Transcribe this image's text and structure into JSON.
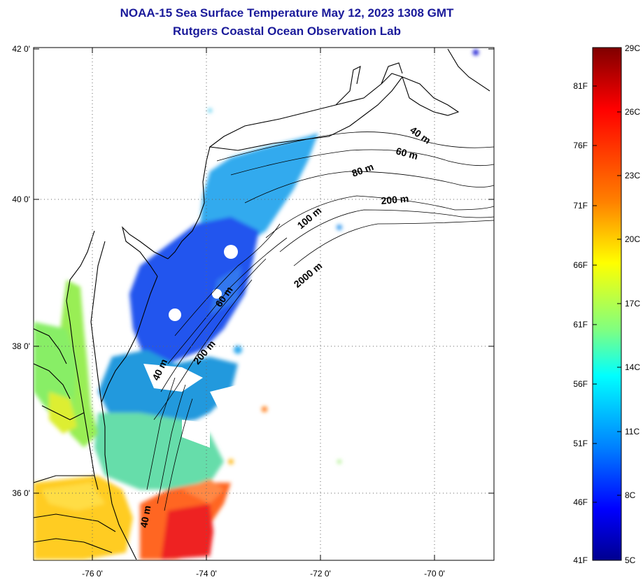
{
  "title": {
    "line1": "NOAA-15 Sea Surface Temperature May 12, 2023 1308 GMT",
    "line2": "Rutgers Coastal Ocean Observation Lab"
  },
  "axes": {
    "lat_labels": [
      "42 0'",
      "40 0'",
      "38 0'",
      "36 0'"
    ],
    "lat_values": [
      42,
      40,
      38,
      36
    ],
    "lon_labels": [
      "-76 0'",
      "-74 0'",
      "-72 0'",
      "-70 0'"
    ],
    "lon_values": [
      -76,
      -74,
      -72,
      -70
    ],
    "lon_range": [
      -77,
      -69
    ],
    "lat_range": [
      35,
      42
    ],
    "grid": "dotted"
  },
  "depth_contours": [
    {
      "label": "40 m"
    },
    {
      "label": "60 m"
    },
    {
      "label": "80 m"
    },
    {
      "label": "200 m"
    },
    {
      "label": "100 m"
    },
    {
      "label": "2000 m"
    },
    {
      "label": "60 m"
    },
    {
      "label": "200 m"
    },
    {
      "label": "40 m"
    },
    {
      "label": "40 m"
    }
  ],
  "colorbar": {
    "fahrenheit_labels": [
      "81F",
      "76F",
      "71F",
      "66F",
      "61F",
      "56F",
      "51F",
      "46F",
      "41F"
    ],
    "celsius_labels": [
      "29C",
      "26C",
      "23C",
      "20C",
      "17C",
      "14C",
      "11C",
      "8C",
      "5C"
    ],
    "colors": [
      "#800000",
      "#ff0000",
      "#ff8000",
      "#ffff00",
      "#80ff80",
      "#00ffff",
      "#0080ff",
      "#0000ff",
      "#00008f"
    ]
  }
}
